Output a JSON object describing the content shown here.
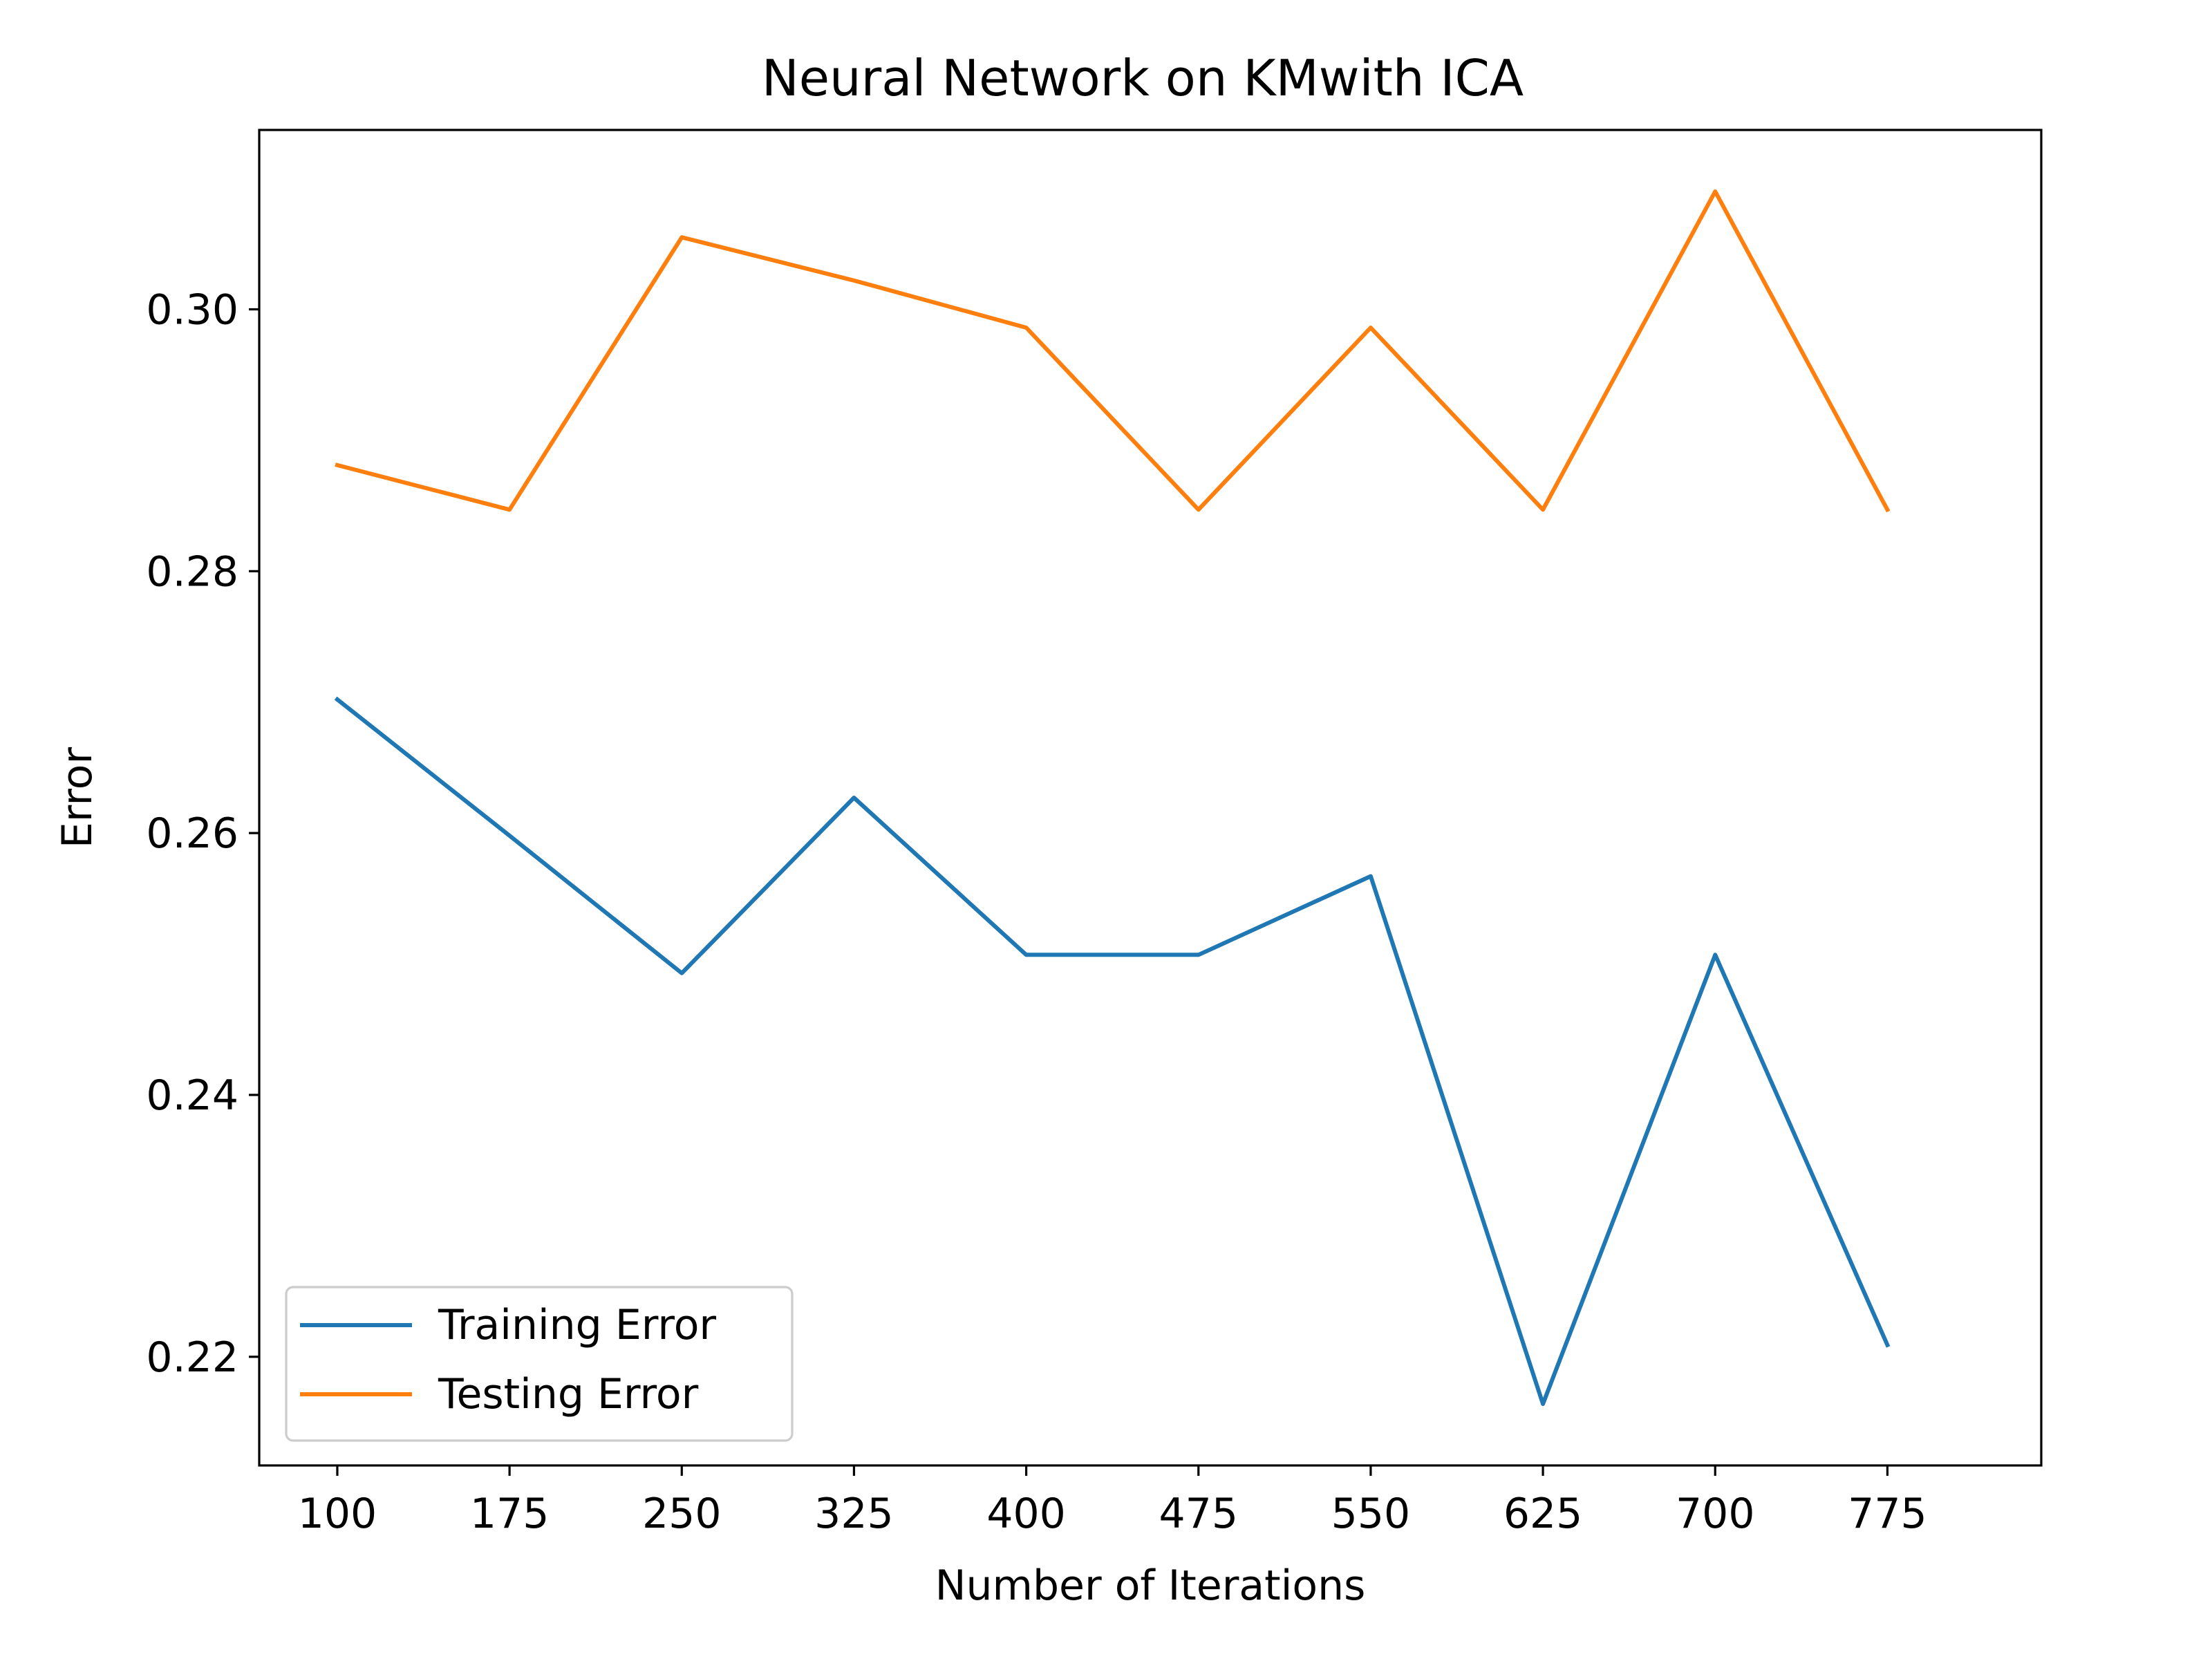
{
  "chart_data": {
    "type": "line",
    "title": "Neural Network on KMwith ICA",
    "xlabel": "Number of Iterations",
    "ylabel": "Error",
    "x": [
      100,
      175,
      250,
      325,
      400,
      475,
      550,
      625,
      700,
      775
    ],
    "x_ticks": [
      "100",
      "175",
      "250",
      "325",
      "400",
      "475",
      "550",
      "625",
      "700",
      "775"
    ],
    "y_ticks": [
      "0.22",
      "0.24",
      "0.26",
      "0.28",
      "0.30"
    ],
    "xlim": [
      66,
      842
    ],
    "ylim": [
      0.2117,
      0.3137
    ],
    "grid": false,
    "legend_position": "lower-left",
    "series": [
      {
        "name": "Training Error",
        "color": "#1f77b4",
        "values": [
          0.2702,
          0.2598,
          0.2493,
          0.2627,
          0.2507,
          0.2507,
          0.2567,
          0.2164,
          0.2507,
          0.2209
        ]
      },
      {
        "name": "Testing Error",
        "color": "#ff7f0e",
        "values": [
          0.2881,
          0.2847,
          0.3055,
          0.3022,
          0.2986,
          0.2847,
          0.2986,
          0.2847,
          0.309,
          0.2847
        ]
      }
    ]
  }
}
